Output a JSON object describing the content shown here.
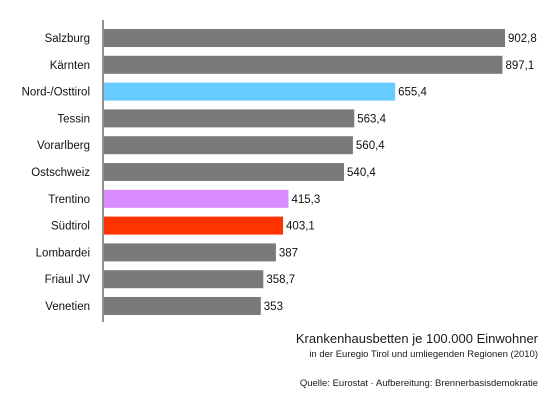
{
  "chart_data": {
    "type": "bar",
    "orientation": "horizontal",
    "title": "Krankenhausbetten je 100.000 Einwohner",
    "subtitle": "in der Euregio Tirol und umliegenden Regionen (2010)",
    "source": "Quelle: Eurostat · Aufbereitung: Brennerbasisdemokratie",
    "xlim": [
      0,
      902.8
    ],
    "grid": false,
    "categories": [
      "Salzburg",
      "Kärnten",
      "Nord-/Osttirol",
      "Tessin",
      "Vorarlberg",
      "Ostschweiz",
      "Trentino",
      "Südtirol",
      "Lombardei",
      "Friaul JV",
      "Venetien"
    ],
    "values": [
      902.8,
      897.1,
      655.4,
      563.4,
      560.4,
      540.4,
      415.3,
      403.1,
      387,
      358.7,
      353
    ],
    "value_labels": [
      "902,8",
      "897,1",
      "655,4",
      "563,4",
      "560,4",
      "540,4",
      "415,3",
      "403,1",
      "387",
      "358,7",
      "353"
    ],
    "colors": [
      "#7a7a7a",
      "#7a7a7a",
      "#66ccff",
      "#7a7a7a",
      "#7a7a7a",
      "#7a7a7a",
      "#d98cff",
      "#ff3300",
      "#7a7a7a",
      "#7a7a7a",
      "#7a7a7a"
    ],
    "axis_color": "#222222"
  }
}
